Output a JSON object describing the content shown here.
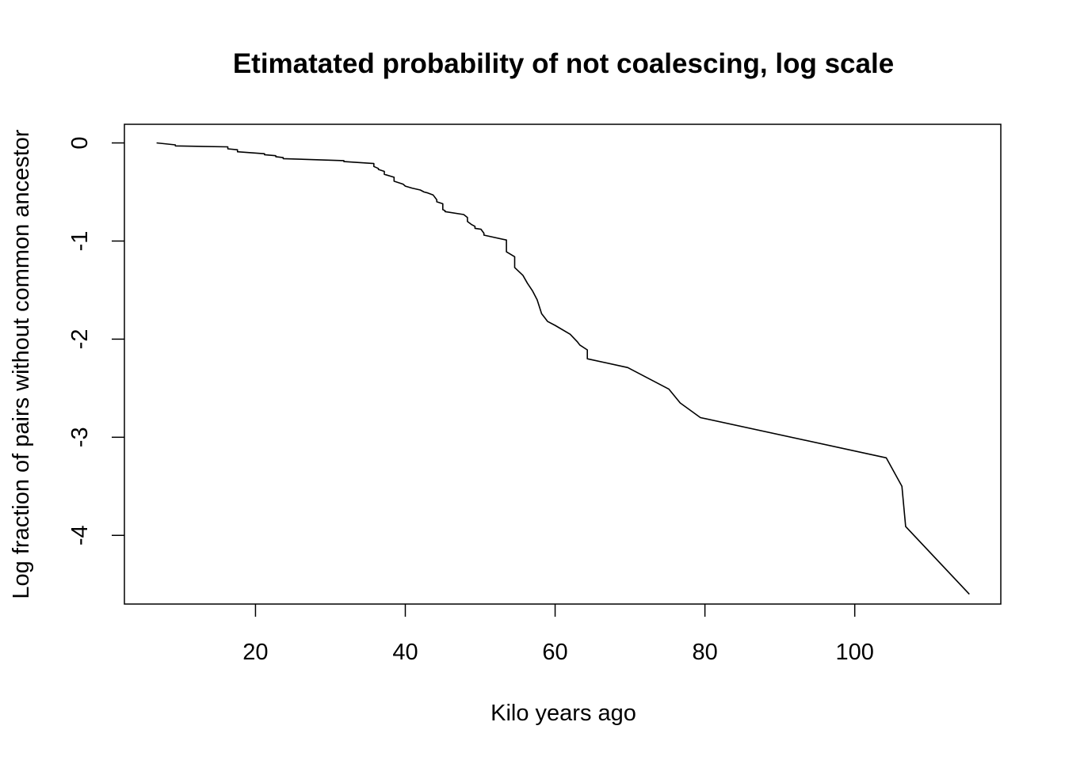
{
  "chart_data": {
    "type": "line",
    "title": "Etimatated probability of not coalescing, log scale",
    "xlabel": "Kilo years ago",
    "ylabel": "Log fraction of pairs without common ancestor",
    "xlim": [
      2.5,
      119.5
    ],
    "ylim": [
      -4.7,
      0.19
    ],
    "xticks": [
      20,
      40,
      60,
      80,
      100
    ],
    "yticks": [
      0,
      -1,
      -2,
      -3,
      -4
    ],
    "grid": false,
    "legend": "none",
    "line_color": "#000000",
    "series": [
      {
        "x": [
          6.8,
          9.3,
          9.3,
          16.3,
          16.3,
          17.6,
          17.6,
          21.2,
          21.2,
          22.7,
          22.7,
          23.7,
          23.7,
          31.8,
          31.8,
          35.8,
          35.8,
          36.4,
          36.4,
          37.2,
          37.2,
          38.5,
          38.5,
          39.7,
          40.0,
          40.9,
          42.0,
          42.5,
          43.0,
          43.7,
          44.2,
          44.2,
          45.0,
          45.0,
          45.3,
          45.3,
          47.8,
          48.3,
          48.3,
          48.8,
          49.3,
          49.3,
          50.1,
          50.5,
          50.5,
          53.5,
          53.5,
          54.6,
          54.6,
          55.7,
          56.3,
          57.0,
          57.6,
          57.9,
          58.2,
          58.6,
          59.0,
          60.0,
          62.0,
          63.0,
          63.3,
          64.3,
          64.3,
          69.7,
          75.2,
          76.7,
          79.4,
          104.2,
          106.3,
          106.8,
          115.3
        ],
        "y": [
          0.0,
          -0.02,
          -0.03,
          -0.04,
          -0.06,
          -0.07,
          -0.09,
          -0.11,
          -0.12,
          -0.13,
          -0.14,
          -0.15,
          -0.16,
          -0.18,
          -0.19,
          -0.21,
          -0.24,
          -0.26,
          -0.27,
          -0.29,
          -0.32,
          -0.35,
          -0.39,
          -0.42,
          -0.44,
          -0.46,
          -0.48,
          -0.5,
          -0.51,
          -0.53,
          -0.58,
          -0.6,
          -0.62,
          -0.68,
          -0.69,
          -0.7,
          -0.73,
          -0.76,
          -0.8,
          -0.83,
          -0.85,
          -0.87,
          -0.88,
          -0.92,
          -0.94,
          -0.99,
          -1.11,
          -1.16,
          -1.27,
          -1.35,
          -1.43,
          -1.51,
          -1.6,
          -1.67,
          -1.74,
          -1.78,
          -1.82,
          -1.86,
          -1.95,
          -2.03,
          -2.06,
          -2.11,
          -2.2,
          -2.29,
          -2.51,
          -2.65,
          -2.8,
          -3.21,
          -3.5,
          -3.91,
          -4.6
        ]
      }
    ]
  }
}
